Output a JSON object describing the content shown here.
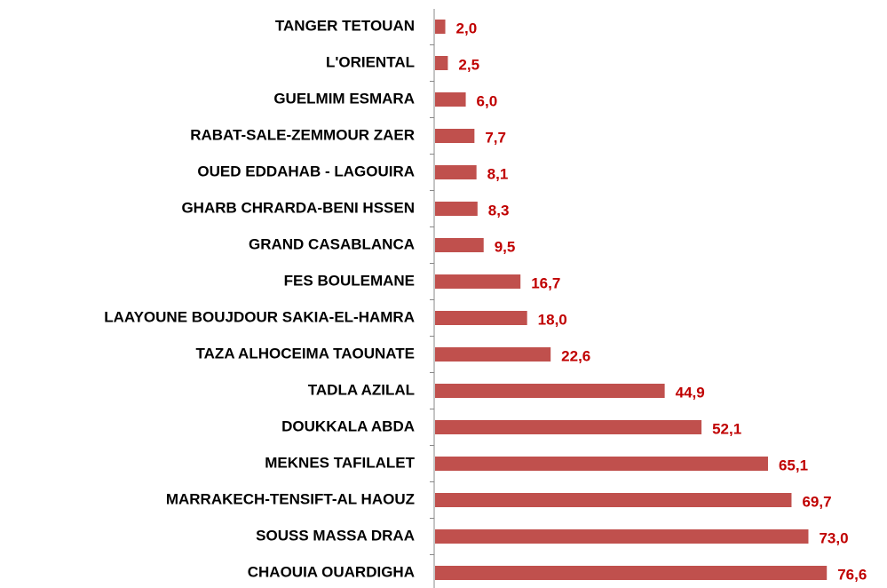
{
  "chart_data": {
    "type": "barh",
    "categories": [
      "TANGER TETOUAN",
      "L'ORIENTAL",
      "GUELMIM ESMARA",
      "RABAT-SALE-ZEMMOUR ZAER",
      "OUED EDDAHAB - LAGOUIRA",
      "GHARB CHRARDA-BENI HSSEN",
      "GRAND CASABLANCA",
      "FES BOULEMANE",
      "LAAYOUNE BOUJDOUR SAKIA-EL-HAMRA",
      "TAZA ALHOCEIMA TAOUNATE",
      "TADLA AZILAL",
      "DOUKKALA ABDA",
      "MEKNES TAFILALET",
      "MARRAKECH-TENSIFT-AL HAOUZ",
      "SOUSS MASSA DRAA",
      "CHAOUIA OUARDIGHA"
    ],
    "values": [
      2.0,
      2.5,
      6.0,
      7.7,
      8.1,
      8.3,
      9.5,
      16.7,
      18.0,
      22.6,
      44.9,
      52.1,
      65.1,
      69.7,
      73.0,
      76.6
    ],
    "value_labels": [
      "2,0",
      "2,5",
      "6,0",
      "7,7",
      "8,1",
      "8,3",
      "9,5",
      "16,7",
      "18,0",
      "22,6",
      "44,9",
      "52,1",
      "65,1",
      "69,7",
      "73,0",
      "76,6"
    ],
    "color": "#c0504d",
    "label_color": "#c00000"
  }
}
